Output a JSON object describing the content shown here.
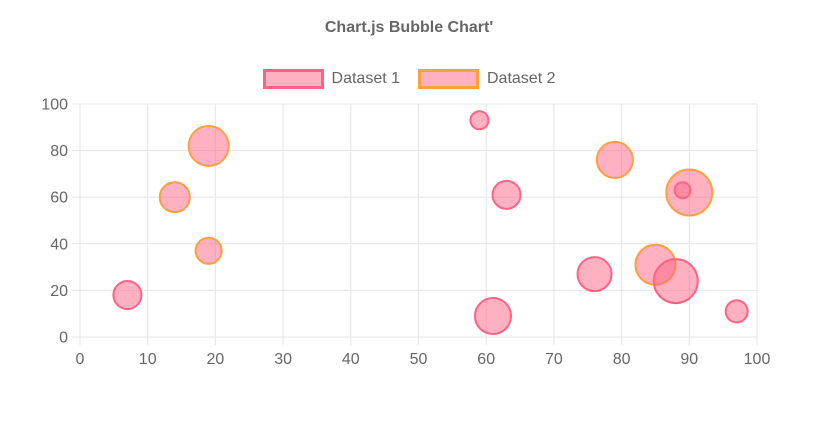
{
  "title": "Chart.js Bubble Chart'",
  "style": {
    "grid_color": "#E5E5E5",
    "tick_color": "#666666",
    "title_color": "#666666",
    "legend_text_color": "#666666",
    "bubble_stroke_width": 2
  },
  "chart_data": {
    "type": "bubble",
    "title": "Chart.js Bubble Chart'",
    "xlabel": "",
    "ylabel": "",
    "xlim": [
      0,
      100
    ],
    "ylim": [
      0,
      100
    ],
    "x_ticks": [
      0,
      10,
      20,
      30,
      40,
      50,
      60,
      70,
      80,
      90,
      100
    ],
    "y_ticks": [
      0,
      20,
      40,
      60,
      80,
      100
    ],
    "grid": true,
    "legend_position": "top",
    "series": [
      {
        "name": "Dataset 1",
        "border_color": "#FF6384",
        "fill_color": "rgba(255,99,132,0.5)",
        "points": [
          {
            "x": 7,
            "y": 18,
            "r": 14
          },
          {
            "x": 59,
            "y": 93,
            "r": 9
          },
          {
            "x": 63,
            "y": 61,
            "r": 14
          },
          {
            "x": 61,
            "y": 9,
            "r": 18
          },
          {
            "x": 76,
            "y": 27,
            "r": 17
          },
          {
            "x": 89,
            "y": 63,
            "r": 8
          },
          {
            "x": 88,
            "y": 24,
            "r": 22
          },
          {
            "x": 97,
            "y": 11,
            "r": 11
          }
        ]
      },
      {
        "name": "Dataset 2",
        "border_color": "#FF9F40",
        "fill_color": "rgba(255,99,132,0.5)",
        "points": [
          {
            "x": 14,
            "y": 60,
            "r": 15
          },
          {
            "x": 19,
            "y": 82,
            "r": 20
          },
          {
            "x": 19,
            "y": 37,
            "r": 13
          },
          {
            "x": 79,
            "y": 76,
            "r": 18
          },
          {
            "x": 90,
            "y": 62,
            "r": 23
          },
          {
            "x": 85,
            "y": 31,
            "r": 20
          }
        ]
      }
    ]
  }
}
